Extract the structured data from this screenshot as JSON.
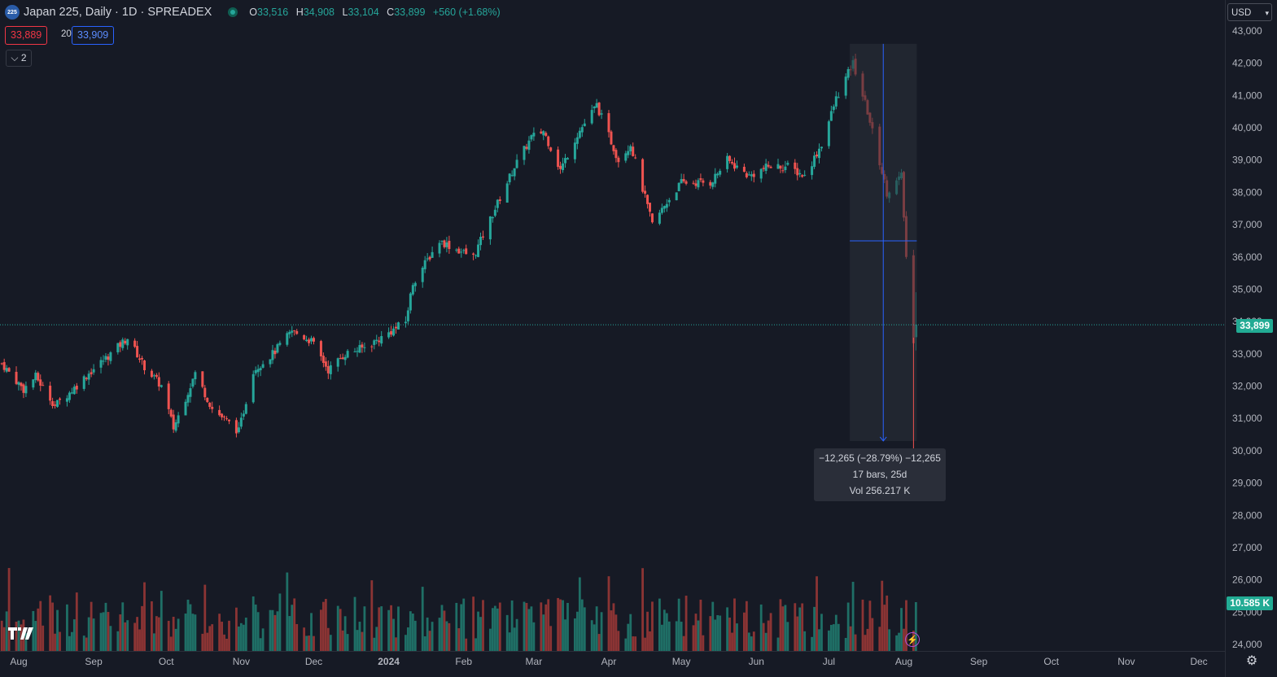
{
  "header": {
    "symbol_badge": "225",
    "title": "Japan 225, Daily · 1D · SPREADEX",
    "ohlc": [
      {
        "key": "O",
        "value": "33,516"
      },
      {
        "key": "H",
        "value": "34,908"
      },
      {
        "key": "L",
        "value": "33,104"
      },
      {
        "key": "C",
        "value": "33,899"
      }
    ],
    "change": "+560 (+1.68%)"
  },
  "trade": {
    "sell_price": "33,889",
    "spread": "20",
    "buy_price": "33,909"
  },
  "indicators_collapsed_count": "2",
  "currency": "USD",
  "measure_tooltip": {
    "line1": "−12,265 (−28.79%) −12,265",
    "line2": "17 bars, 25d",
    "line3": "Vol 256.217 K"
  },
  "price_tag": "33,899",
  "volume_tag": "10.585 K",
  "colors": {
    "up": "#26a69a",
    "down": "#ef5350",
    "background": "#161a25",
    "measure": "#2962ff"
  },
  "icons": {
    "logo": "tradingview-logo-icon",
    "flash": "lightning-icon",
    "settings": "gear-icon",
    "currency_dropdown": "chevron-down-icon"
  },
  "chart_data": {
    "type": "candlestick",
    "title": "Japan 225, Daily · 1D · SPREADEX",
    "y_ticks": [
      24000,
      25000,
      26000,
      27000,
      28000,
      29000,
      30000,
      31000,
      32000,
      33000,
      34000,
      35000,
      36000,
      37000,
      38000,
      39000,
      40000,
      41000,
      42000,
      43000
    ],
    "y_tick_labels": [
      "24,000",
      "25,000",
      "26,000",
      "27,000",
      "28,000",
      "29,000",
      "30,000",
      "31,000",
      "32,000",
      "33,000",
      "34,000",
      "35,000",
      "36,000",
      "37,000",
      "38,000",
      "39,000",
      "40,000",
      "41,000",
      "42,000",
      "43,000"
    ],
    "ylim": [
      24000,
      43000
    ],
    "x_labels": [
      "Aug",
      "Sep",
      "Oct",
      "Nov",
      "Dec",
      "2024",
      "Feb",
      "Mar",
      "Apr",
      "May",
      "Jun",
      "Jul",
      "Aug",
      "Sep",
      "Oct",
      "Nov",
      "Dec"
    ],
    "x_label_dates": [
      "2023-08-01",
      "2023-09-01",
      "2023-10-01",
      "2023-11-01",
      "2023-12-01",
      "2024-01-01",
      "2024-02-01",
      "2024-03-01",
      "2024-04-01",
      "2024-05-01",
      "2024-06-01",
      "2024-07-01",
      "2024-08-01",
      "2024-09-01",
      "2024-10-01",
      "2024-11-01",
      "2024-12-01"
    ],
    "close_path": [
      [
        "2023-07-25",
        32700
      ],
      [
        "2023-08-03",
        31900
      ],
      [
        "2023-08-08",
        32300
      ],
      [
        "2023-08-16",
        31400
      ],
      [
        "2023-08-22",
        31800
      ],
      [
        "2023-08-30",
        32400
      ],
      [
        "2023-09-08",
        33000
      ],
      [
        "2023-09-15",
        33500
      ],
      [
        "2023-09-22",
        32600
      ],
      [
        "2023-09-29",
        32000
      ],
      [
        "2023-10-04",
        30700
      ],
      [
        "2023-10-13",
        32400
      ],
      [
        "2023-10-20",
        31300
      ],
      [
        "2023-10-31",
        30600
      ],
      [
        "2023-11-06",
        32500
      ],
      [
        "2023-11-14",
        33000
      ],
      [
        "2023-11-22",
        33700
      ],
      [
        "2023-11-30",
        33400
      ],
      [
        "2023-12-07",
        32500
      ],
      [
        "2023-12-14",
        33000
      ],
      [
        "2023-12-22",
        33200
      ],
      [
        "2023-12-29",
        33500
      ],
      [
        "2024-01-08",
        34000
      ],
      [
        "2024-01-11",
        35200
      ],
      [
        "2024-01-22",
        36500
      ],
      [
        "2024-01-30",
        36200
      ],
      [
        "2024-02-05",
        36000
      ],
      [
        "2024-02-14",
        37500
      ],
      [
        "2024-02-22",
        38800
      ],
      [
        "2024-02-29",
        39700
      ],
      [
        "2024-03-05",
        39900
      ],
      [
        "2024-03-12",
        38700
      ],
      [
        "2024-03-19",
        39800
      ],
      [
        "2024-03-27",
        40700
      ],
      [
        "2024-04-05",
        39000
      ],
      [
        "2024-04-10",
        39500
      ],
      [
        "2024-04-19",
        37000
      ],
      [
        "2024-04-25",
        37700
      ],
      [
        "2024-05-01",
        38300
      ],
      [
        "2024-05-13",
        38300
      ],
      [
        "2024-05-20",
        39000
      ],
      [
        "2024-05-29",
        38500
      ],
      [
        "2024-06-06",
        38800
      ],
      [
        "2024-06-14",
        38800
      ],
      [
        "2024-06-21",
        38500
      ],
      [
        "2024-06-28",
        39500
      ],
      [
        "2024-07-04",
        40900
      ],
      [
        "2024-07-11",
        42000
      ],
      [
        "2024-07-17",
        40500
      ],
      [
        "2024-07-25",
        38000
      ],
      [
        "2024-07-31",
        38500
      ],
      [
        "2024-08-02",
        36000
      ],
      [
        "2024-08-05",
        33300
      ],
      [
        "2024-08-06",
        33899
      ]
    ],
    "last_bar": {
      "open": 33516,
      "high": 34908,
      "low": 33104,
      "close": 33899
    },
    "current_price": 33899,
    "bid": 33889,
    "ask": 33909,
    "measure": {
      "from_date": "2024-07-11",
      "to_date": "2024-08-05",
      "change": -12265,
      "change_pct": -28.79,
      "bars": 17,
      "days": 25,
      "volume": "256.217 K"
    },
    "volume_last": "10.585 K",
    "grid": false,
    "series": [
      {
        "name": "Japan 225",
        "type": "candlestick"
      },
      {
        "name": "Vol",
        "type": "histogram"
      }
    ]
  }
}
